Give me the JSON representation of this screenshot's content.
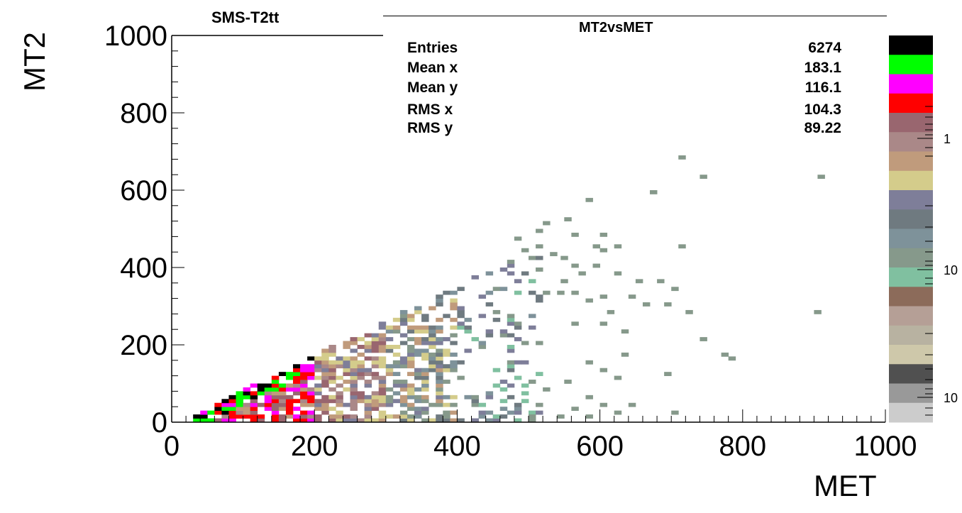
{
  "chart_data": {
    "type": "heatmap",
    "title": "MT2vsMET",
    "corner_label": "SMS-T2tt",
    "xlabel": "MET",
    "ylabel": "MT2",
    "xlim": [
      0,
      1000
    ],
    "ylim": [
      0,
      1000
    ],
    "x_ticks": [
      "0",
      "200",
      "400",
      "600",
      "800",
      "1000"
    ],
    "y_ticks": [
      "0",
      "200",
      "400",
      "600",
      "800",
      "1000"
    ],
    "bin_width": 10,
    "log_color_scale": true,
    "palette_labels": [
      "1",
      "10",
      "10"
    ],
    "palette_colors": [
      "#000000",
      "#00ff00",
      "#ff00ff",
      "#ff0000",
      "#99666f",
      "#aa8888",
      "#c09b7c",
      "#d4cc8b",
      "#7e7e99",
      "#6f7a80",
      "#7e929a",
      "#86998b",
      "#80c0a0",
      "#8c6b5a",
      "#b59f96",
      "#b8b2a1",
      "#cec8aa",
      "#505050",
      "#999999",
      "#cccccc"
    ],
    "stats": [
      {
        "name": "Entries",
        "value": "6274"
      },
      {
        "name": "Mean x",
        "value": "183.1"
      },
      {
        "name": "Mean y",
        "value": "116.1"
      },
      {
        "name": "RMS x",
        "value": "104.3"
      },
      {
        "name": "RMS y",
        "value": "89.22"
      }
    ],
    "sparse_bins": [
      [
        710,
        680,
        11
      ],
      [
        740,
        630,
        11
      ],
      [
        905,
        630,
        11
      ],
      [
        670,
        590,
        11
      ],
      [
        580,
        570,
        11
      ],
      [
        550,
        520,
        11
      ],
      [
        520,
        510,
        11
      ],
      [
        510,
        490,
        11
      ],
      [
        560,
        480,
        11
      ],
      [
        600,
        480,
        11
      ],
      [
        480,
        470,
        11
      ],
      [
        590,
        450,
        11
      ],
      [
        620,
        450,
        11
      ],
      [
        490,
        440,
        11
      ],
      [
        530,
        430,
        11
      ],
      [
        545,
        420,
        11
      ],
      [
        710,
        450,
        11
      ],
      [
        600,
        440,
        11
      ],
      [
        560,
        400,
        11
      ],
      [
        590,
        400,
        11
      ],
      [
        620,
        380,
        11
      ],
      [
        650,
        360,
        11
      ],
      [
        570,
        380,
        11
      ],
      [
        680,
        360,
        11
      ],
      [
        700,
        340,
        11
      ],
      [
        545,
        360,
        11
      ],
      [
        510,
        390,
        11
      ],
      [
        520,
        330,
        11
      ],
      [
        540,
        330,
        11
      ],
      [
        560,
        330,
        11
      ],
      [
        600,
        320,
        11
      ],
      [
        640,
        320,
        11
      ],
      [
        660,
        300,
        11
      ],
      [
        690,
        300,
        11
      ],
      [
        720,
        280,
        11
      ],
      [
        580,
        310,
        11
      ],
      [
        610,
        280,
        11
      ],
      [
        560,
        250,
        11
      ],
      [
        600,
        250,
        11
      ],
      [
        630,
        230,
        11
      ],
      [
        900,
        280,
        11
      ],
      [
        740,
        210,
        11
      ],
      [
        770,
        170,
        11
      ],
      [
        780,
        160,
        11
      ],
      [
        690,
        120,
        11
      ],
      [
        630,
        170,
        11
      ],
      [
        580,
        150,
        11
      ],
      [
        600,
        130,
        11
      ],
      [
        620,
        110,
        11
      ],
      [
        550,
        100,
        11
      ],
      [
        520,
        80,
        11
      ],
      [
        580,
        60,
        11
      ],
      [
        600,
        40,
        11
      ],
      [
        620,
        20,
        11
      ],
      [
        700,
        20,
        11
      ],
      [
        640,
        40,
        11
      ],
      [
        560,
        30,
        11
      ],
      [
        540,
        10,
        11
      ],
      [
        500,
        10,
        11
      ],
      [
        580,
        10,
        11
      ]
    ],
    "band_slope": 0.9,
    "band_start": 30,
    "band_end": 520
  }
}
